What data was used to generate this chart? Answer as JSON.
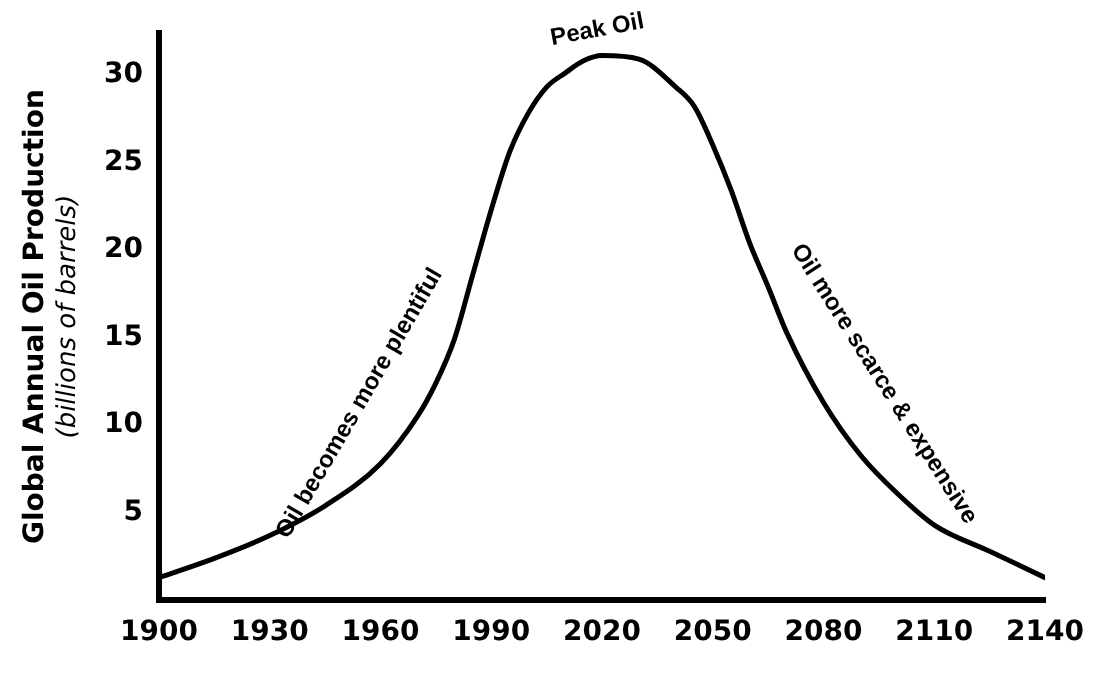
{
  "chart_data": {
    "type": "line",
    "ylabel": "Global Annual Oil Production\n(billions of barrels)",
    "x": [
      1900,
      1915,
      1930,
      1945,
      1960,
      1970,
      1975,
      1980,
      1985,
      1990,
      1995,
      2000,
      2005,
      2010,
      2015,
      2020,
      2030,
      2040,
      2045,
      2050,
      2055,
      2060,
      2065,
      2070,
      2080,
      2090,
      2100,
      2110,
      2125,
      2140
    ],
    "series": [
      {
        "color": "#000000",
        "values": [
          1.3,
          2.4,
          3.7,
          5.4,
          7.8,
          10.5,
          12.4,
          14.9,
          18.6,
          22.3,
          25.6,
          27.8,
          29.3,
          30.1,
          30.8,
          31.1,
          30.9,
          29.3,
          28.2,
          26.0,
          23.4,
          20.4,
          17.9,
          15.3,
          11.3,
          8.3,
          6.1,
          4.3,
          2.8,
          1.3
        ]
      }
    ],
    "xlim": [
      1900,
      2140
    ],
    "xticks": [
      1900,
      1930,
      1960,
      1990,
      2020,
      2050,
      2080,
      2110,
      2140
    ],
    "ylim": [
      0,
      32.4
    ],
    "yticks": [
      5,
      10,
      15,
      20,
      25,
      30
    ],
    "grid": false,
    "legend": false,
    "marker": "none",
    "line_style": "solid",
    "annotations": [
      {
        "text": "Peak Oil",
        "x": 2020,
        "y": 31.1
      },
      {
        "text": "Oil becomes more plentiful",
        "x": 1967,
        "y": 9.7
      },
      {
        "text": "Oil more scarce & expensive",
        "x": 2084,
        "y": 10.7
      }
    ]
  }
}
